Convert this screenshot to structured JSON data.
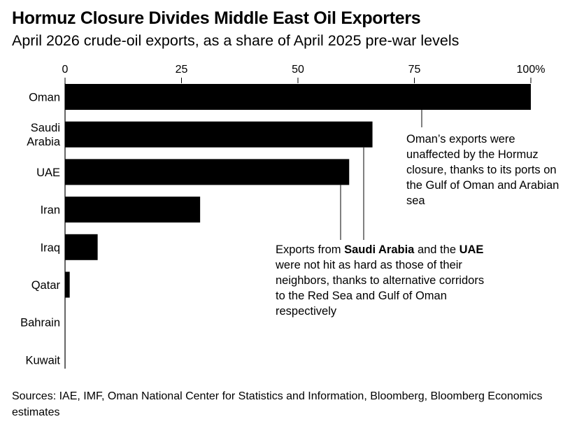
{
  "title": "Hormuz Closure Divides Middle East Oil Exporters",
  "subtitle": "April 2026 crude-oil exports, as a share of April 2025 pre-war levels",
  "source": "Sources: IAE, IMF, Oman National Center for Statistics and Information, Bloomberg, Bloomberg Economics estimates",
  "annotations": {
    "oman": "Oman’s exports were unaffected by the Hormuz closure, thanks to its ports on the Gulf of Oman and Arabian sea",
    "gulf_pre1": "Exports from ",
    "gulf_bold1": "Saudi Arabia",
    "gulf_mid": " and the ",
    "gulf_bold2": "UAE",
    "gulf_post": " were not hit as hard as those of their neighbors, thanks to alternative corridors to the Red Sea and Gulf of Oman respectively"
  },
  "chart_data": {
    "type": "bar",
    "orientation": "horizontal",
    "title": "Hormuz Closure Divides Middle East Oil Exporters",
    "subtitle": "April 2026 crude-oil exports, as a share of April 2025 pre-war levels",
    "categories": [
      [
        "Oman"
      ],
      [
        "Saudi",
        "Arabia"
      ],
      [
        "UAE"
      ],
      [
        "Iran"
      ],
      [
        "Iraq"
      ],
      [
        "Qatar"
      ],
      [
        "Bahrain"
      ],
      [
        "Kuwait"
      ]
    ],
    "values": [
      100,
      66,
      61,
      29,
      7,
      1,
      0,
      0
    ],
    "xticks": [
      0,
      25,
      50,
      75,
      100
    ],
    "xtick_labels": [
      "0",
      "25",
      "50",
      "75",
      "100%"
    ],
    "xlim": [
      0,
      100
    ],
    "color": "#000000",
    "grid": false,
    "legend": "none"
  }
}
